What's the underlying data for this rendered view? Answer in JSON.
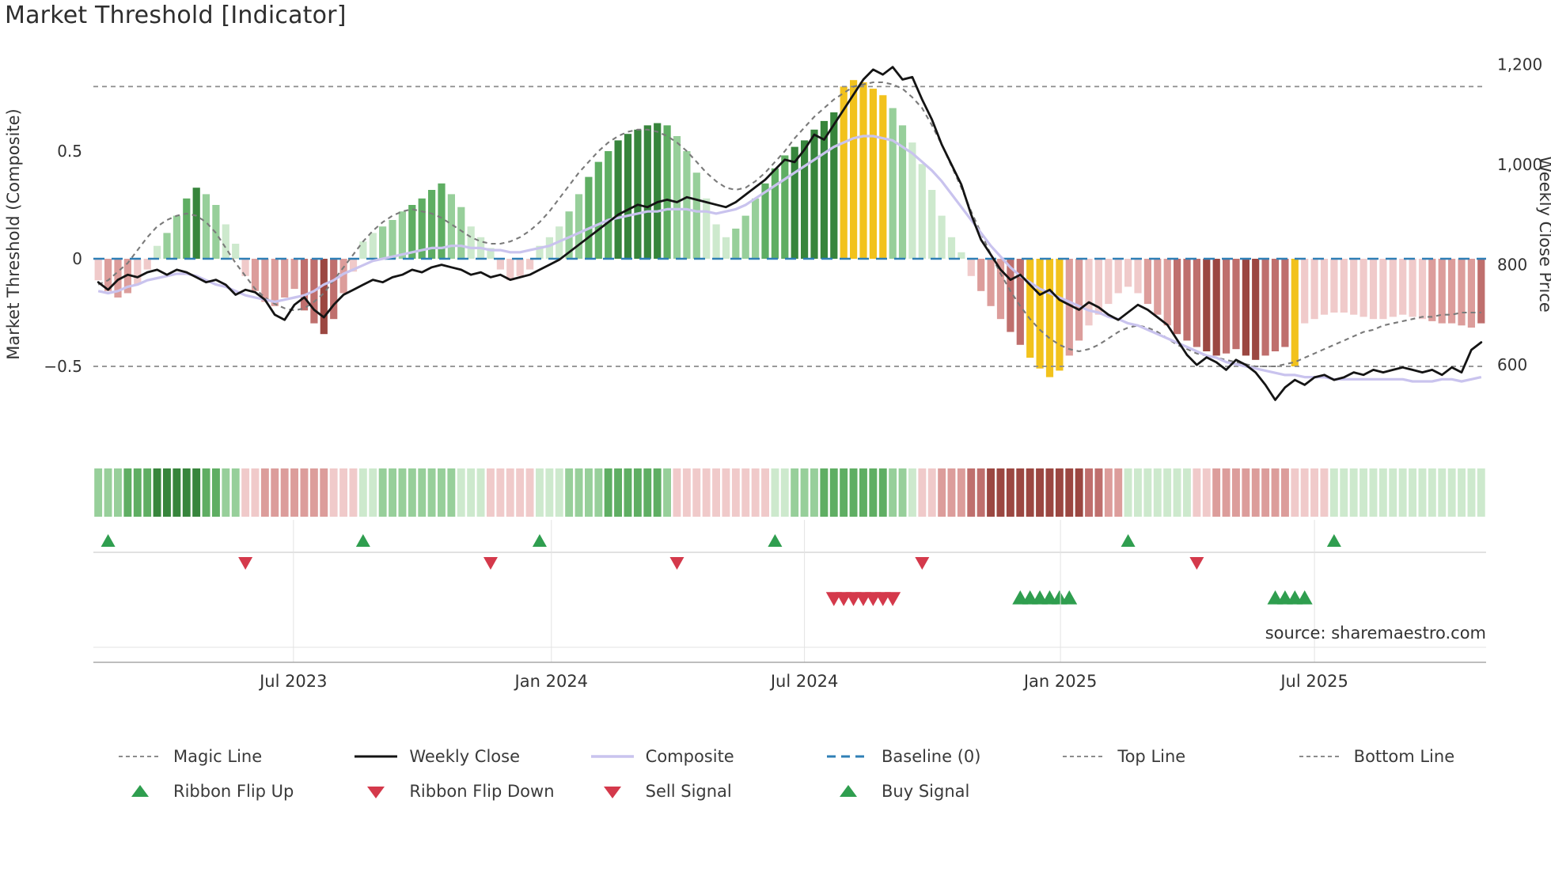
{
  "title": "Market Threshold [Indicator]",
  "source": "source: sharemaestro.com",
  "axes": {
    "left_label": "Market Threshold (Composite)",
    "right_label": "Weekly Close Price",
    "left_ticks": [
      {
        "label": "0.5",
        "value": 0.5
      },
      {
        "label": "0",
        "value": 0
      },
      {
        "label": "−0.5",
        "value": -0.5
      }
    ],
    "right_ticks": [
      {
        "label": "1,200",
        "value": 1200
      },
      {
        "label": "1,000",
        "value": 1000
      },
      {
        "label": "800",
        "value": 800
      },
      {
        "label": "600",
        "value": 600
      }
    ],
    "x_ticks": [
      {
        "label": "Jul 2023",
        "week_position": 19.9
      },
      {
        "label": "Jan 2024",
        "week_position": 46.2
      },
      {
        "label": "Jul 2024",
        "week_position": 72.0
      },
      {
        "label": "Jan 2025",
        "week_position": 98.1
      },
      {
        "label": "Jul 2025",
        "week_position": 124.0
      }
    ]
  },
  "legend": {
    "row1": [
      {
        "label": "Magic Line",
        "swatch": "magic"
      },
      {
        "label": "Weekly Close",
        "swatch": "weekly"
      },
      {
        "label": "Composite",
        "swatch": "composite"
      },
      {
        "label": "Baseline (0)",
        "swatch": "baseline"
      },
      {
        "label": "Top Line",
        "swatch": "top"
      },
      {
        "label": "Bottom Line",
        "swatch": "bottom"
      }
    ],
    "row2": [
      {
        "label": "Ribbon Flip Up",
        "swatch": "flip-up"
      },
      {
        "label": "Ribbon Flip Down",
        "swatch": "flip-down"
      },
      {
        "label": "Sell Signal",
        "swatch": "sell"
      },
      {
        "label": "Buy Signal",
        "swatch": "buy"
      }
    ]
  },
  "colors": {
    "magic_line": "#7a7a7a",
    "weekly_close": "#141414",
    "composite_line": "#c9c3ee",
    "baseline": "#2f7fb6",
    "top_bottom_line": "#8c8c8c",
    "buy_green": "#2f9e4f",
    "sell_red": "#d4394b",
    "bar_palette": {
      "g1": "#cde9cd",
      "g2": "#97cf9a",
      "g3": "#5fae63",
      "g4": "#37853c",
      "r1": "#f0caca",
      "r2": "#dc9d9b",
      "r3": "#bf6f6d",
      "r4": "#9b4741",
      "y": "#f2c21c"
    }
  },
  "chart_data": {
    "type": "bar",
    "subtype": "composite indicator histogram with overlaid lines, ribbon heatmap and signal markers",
    "title": "Market Threshold [Indicator]",
    "xlabel": "",
    "ylabel_left": "Market Threshold (Composite)",
    "ylabel_right": "Weekly Close Price",
    "left_axis_range": [
      -0.9,
      0.85
    ],
    "right_axis_range": [
      560,
      1235
    ],
    "baseline": 0,
    "top_line": 0.8,
    "bottom_line": -0.5,
    "weeks": 142,
    "threshold_bars": {
      "values": [
        -0.1,
        -0.15,
        -0.18,
        -0.16,
        -0.12,
        -0.05,
        0.06,
        0.12,
        0.2,
        0.28,
        0.33,
        0.3,
        0.25,
        0.16,
        0.07,
        -0.08,
        -0.15,
        -0.2,
        -0.22,
        -0.18,
        -0.14,
        -0.24,
        -0.3,
        -0.35,
        -0.28,
        -0.16,
        -0.06,
        0.08,
        0.12,
        0.15,
        0.18,
        0.22,
        0.25,
        0.28,
        0.32,
        0.35,
        0.3,
        0.24,
        0.15,
        0.1,
        0.05,
        -0.05,
        -0.1,
        -0.08,
        -0.05,
        0.06,
        0.1,
        0.15,
        0.22,
        0.3,
        0.38,
        0.45,
        0.5,
        0.55,
        0.58,
        0.6,
        0.62,
        0.63,
        0.62,
        0.57,
        0.5,
        0.4,
        0.28,
        0.16,
        0.1,
        0.14,
        0.2,
        0.28,
        0.35,
        0.42,
        0.48,
        0.52,
        0.55,
        0.6,
        0.64,
        0.68,
        0.8,
        0.83,
        0.82,
        0.79,
        0.76,
        0.7,
        0.62,
        0.54,
        0.44,
        0.32,
        0.2,
        0.1,
        0.03,
        -0.08,
        -0.15,
        -0.22,
        -0.28,
        -0.34,
        -0.4,
        -0.46,
        -0.51,
        -0.55,
        -0.52,
        -0.45,
        -0.38,
        -0.31,
        -0.26,
        -0.21,
        -0.16,
        -0.13,
        -0.16,
        -0.21,
        -0.26,
        -0.31,
        -0.35,
        -0.38,
        -0.41,
        -0.43,
        -0.45,
        -0.44,
        -0.42,
        -0.45,
        -0.47,
        -0.45,
        -0.43,
        -0.41,
        -0.5,
        -0.3,
        -0.28,
        -0.26,
        -0.25,
        -0.25,
        -0.26,
        -0.27,
        -0.28,
        -0.28,
        -0.27,
        -0.26,
        -0.27,
        -0.28,
        -0.29,
        -0.3,
        -0.3,
        -0.31,
        -0.32,
        -0.3
      ],
      "colors": [
        "r1",
        "r2",
        "r2",
        "r2",
        "r1",
        "r1",
        "g1",
        "g2",
        "g2",
        "g3",
        "g4",
        "g2",
        "g2",
        "g1",
        "g1",
        "r1",
        "r2",
        "r2",
        "r2",
        "r2",
        "r2",
        "r3",
        "r3",
        "r4",
        "r3",
        "r2",
        "r1",
        "g1",
        "g1",
        "g2",
        "g2",
        "g2",
        "g3",
        "g3",
        "g3",
        "g3",
        "g2",
        "g2",
        "g1",
        "g1",
        "g1",
        "r1",
        "r1",
        "r1",
        "r1",
        "g1",
        "g1",
        "g1",
        "g2",
        "g2",
        "g3",
        "g3",
        "g3",
        "g4",
        "g4",
        "g4",
        "g4",
        "g4",
        "g3",
        "g2",
        "g2",
        "g2",
        "g1",
        "g1",
        "g1",
        "g2",
        "g2",
        "g2",
        "g3",
        "g3",
        "g3",
        "g4",
        "g4",
        "g4",
        "g4",
        "g4",
        "y",
        "y",
        "y",
        "y",
        "y",
        "g2",
        "g2",
        "g1",
        "g1",
        "g1",
        "g1",
        "g1",
        "g1",
        "r1",
        "r2",
        "r2",
        "r2",
        "r3",
        "r3",
        "y",
        "y",
        "y",
        "y",
        "r2",
        "r2",
        "r1",
        "r1",
        "r1",
        "r1",
        "r1",
        "r1",
        "r2",
        "r2",
        "r2",
        "r3",
        "r3",
        "r3",
        "r4",
        "r4",
        "r3",
        "r3",
        "r4",
        "r4",
        "r3",
        "r3",
        "r3",
        "y",
        "r1",
        "r1",
        "r1",
        "r1",
        "r1",
        "r1",
        "r1",
        "r1",
        "r1",
        "r1",
        "r1",
        "r1",
        "r1",
        "r2",
        "r2",
        "r2",
        "r2",
        "r2",
        "r3"
      ]
    },
    "weekly_close": [
      765,
      750,
      770,
      780,
      775,
      785,
      790,
      780,
      790,
      785,
      775,
      765,
      770,
      760,
      740,
      750,
      745,
      730,
      700,
      690,
      720,
      735,
      710,
      695,
      720,
      740,
      750,
      760,
      770,
      765,
      775,
      780,
      790,
      785,
      795,
      800,
      795,
      790,
      780,
      785,
      775,
      780,
      770,
      775,
      780,
      790,
      800,
      810,
      825,
      840,
      855,
      870,
      885,
      900,
      910,
      920,
      915,
      925,
      930,
      925,
      935,
      930,
      925,
      920,
      915,
      925,
      940,
      955,
      970,
      990,
      1010,
      1005,
      1030,
      1060,
      1050,
      1080,
      1110,
      1140,
      1170,
      1190,
      1180,
      1195,
      1170,
      1175,
      1130,
      1090,
      1040,
      1000,
      960,
      900,
      850,
      820,
      790,
      770,
      780,
      760,
      740,
      750,
      730,
      720,
      710,
      725,
      715,
      700,
      690,
      705,
      720,
      710,
      695,
      680,
      650,
      620,
      600,
      615,
      605,
      590,
      610,
      600,
      585,
      560,
      530,
      555,
      570,
      560,
      575,
      580,
      570,
      575,
      585,
      580,
      590,
      585,
      590,
      595,
      590,
      585,
      590,
      580,
      595,
      585,
      630,
      645
    ],
    "composite": [
      -0.15,
      -0.16,
      -0.15,
      -0.13,
      -0.12,
      -0.1,
      -0.09,
      -0.08,
      -0.07,
      -0.07,
      -0.08,
      -0.1,
      -0.12,
      -0.13,
      -0.15,
      -0.17,
      -0.18,
      -0.19,
      -0.2,
      -0.19,
      -0.18,
      -0.17,
      -0.15,
      -0.12,
      -0.1,
      -0.07,
      -0.05,
      -0.03,
      -0.01,
      0.0,
      0.01,
      0.02,
      0.03,
      0.04,
      0.05,
      0.05,
      0.06,
      0.06,
      0.05,
      0.05,
      0.04,
      0.04,
      0.03,
      0.03,
      0.04,
      0.05,
      0.06,
      0.08,
      0.1,
      0.12,
      0.14,
      0.16,
      0.18,
      0.19,
      0.2,
      0.21,
      0.22,
      0.22,
      0.23,
      0.23,
      0.23,
      0.22,
      0.22,
      0.21,
      0.22,
      0.23,
      0.25,
      0.28,
      0.31,
      0.34,
      0.37,
      0.4,
      0.43,
      0.46,
      0.49,
      0.52,
      0.54,
      0.56,
      0.57,
      0.57,
      0.56,
      0.55,
      0.52,
      0.49,
      0.45,
      0.41,
      0.36,
      0.3,
      0.24,
      0.18,
      0.12,
      0.06,
      0.01,
      -0.04,
      -0.08,
      -0.11,
      -0.14,
      -0.16,
      -0.18,
      -0.2,
      -0.22,
      -0.24,
      -0.25,
      -0.27,
      -0.28,
      -0.3,
      -0.31,
      -0.33,
      -0.35,
      -0.37,
      -0.39,
      -0.41,
      -0.43,
      -0.45,
      -0.46,
      -0.48,
      -0.49,
      -0.5,
      -0.51,
      -0.52,
      -0.53,
      -0.54,
      -0.54,
      -0.55,
      -0.55,
      -0.55,
      -0.56,
      -0.56,
      -0.56,
      -0.56,
      -0.56,
      -0.56,
      -0.56,
      -0.56,
      -0.57,
      -0.57,
      -0.57,
      -0.56,
      -0.56,
      -0.57,
      -0.56,
      -0.55
    ],
    "magic_line": [
      -0.12,
      -0.1,
      -0.06,
      -0.02,
      0.04,
      0.1,
      0.15,
      0.18,
      0.2,
      0.21,
      0.2,
      0.17,
      0.12,
      0.05,
      -0.02,
      -0.08,
      -0.14,
      -0.18,
      -0.21,
      -0.23,
      -0.24,
      -0.23,
      -0.2,
      -0.16,
      -0.1,
      -0.04,
      0.02,
      0.08,
      0.13,
      0.17,
      0.2,
      0.22,
      0.23,
      0.22,
      0.21,
      0.19,
      0.16,
      0.13,
      0.1,
      0.08,
      0.07,
      0.07,
      0.08,
      0.1,
      0.13,
      0.17,
      0.22,
      0.28,
      0.34,
      0.4,
      0.45,
      0.5,
      0.54,
      0.57,
      0.59,
      0.6,
      0.6,
      0.59,
      0.57,
      0.54,
      0.5,
      0.45,
      0.4,
      0.36,
      0.33,
      0.32,
      0.33,
      0.36,
      0.4,
      0.45,
      0.5,
      0.56,
      0.61,
      0.66,
      0.7,
      0.74,
      0.77,
      0.8,
      0.81,
      0.82,
      0.82,
      0.81,
      0.79,
      0.75,
      0.7,
      0.62,
      0.53,
      0.43,
      0.33,
      0.22,
      0.12,
      0.02,
      -0.07,
      -0.15,
      -0.22,
      -0.28,
      -0.33,
      -0.37,
      -0.4,
      -0.42,
      -0.43,
      -0.42,
      -0.4,
      -0.37,
      -0.34,
      -0.32,
      -0.31,
      -0.32,
      -0.34,
      -0.37,
      -0.4,
      -0.42,
      -0.44,
      -0.45,
      -0.46,
      -0.47,
      -0.48,
      -0.49,
      -0.5,
      -0.5,
      -0.5,
      -0.49,
      -0.48,
      -0.46,
      -0.44,
      -0.42,
      -0.4,
      -0.38,
      -0.36,
      -0.34,
      -0.33,
      -0.31,
      -0.3,
      -0.29,
      -0.28,
      -0.27,
      -0.27,
      -0.26,
      -0.26,
      -0.25,
      -0.25,
      -0.25
    ],
    "ribbon": [
      "g2",
      "g2",
      "g2",
      "g3",
      "g3",
      "g3",
      "g4",
      "g4",
      "g4",
      "g4",
      "g4",
      "g3",
      "g3",
      "g2",
      "g2",
      "r1",
      "r1",
      "r2",
      "r2",
      "r2",
      "r2",
      "r2",
      "r2",
      "r2",
      "r1",
      "r1",
      "r1",
      "g1",
      "g1",
      "g2",
      "g2",
      "g2",
      "g2",
      "g2",
      "g2",
      "g2",
      "g2",
      "g1",
      "g1",
      "g1",
      "r1",
      "r1",
      "r1",
      "r1",
      "r1",
      "g1",
      "g1",
      "g1",
      "g2",
      "g2",
      "g2",
      "g2",
      "g3",
      "g3",
      "g3",
      "g3",
      "g3",
      "g3",
      "g2",
      "r1",
      "r1",
      "r1",
      "r1",
      "r1",
      "r1",
      "r1",
      "r1",
      "r1",
      "r1",
      "g1",
      "g1",
      "g2",
      "g2",
      "g2",
      "g3",
      "g3",
      "g3",
      "g3",
      "g3",
      "g3",
      "g3",
      "g2",
      "g2",
      "g1",
      "r1",
      "r1",
      "r2",
      "r2",
      "r2",
      "r3",
      "r3",
      "r4",
      "r4",
      "r4",
      "r4",
      "r4",
      "r4",
      "r4",
      "r4",
      "r4",
      "r4",
      "r3",
      "r3",
      "r2",
      "r2",
      "g1",
      "g1",
      "g1",
      "g1",
      "g1",
      "g1",
      "g1",
      "r1",
      "r1",
      "r2",
      "r2",
      "r2",
      "r2",
      "r2",
      "r2",
      "r2",
      "r2",
      "r1",
      "r1",
      "r1",
      "r1",
      "g1",
      "g1",
      "g1",
      "g1",
      "g1",
      "g1",
      "g1",
      "g1",
      "g1",
      "g1",
      "g1",
      "g1",
      "g1",
      "g1",
      "g1",
      "g1"
    ],
    "signals": {
      "ribbon_flip_up": [
        1,
        27,
        45,
        69,
        105,
        126
      ],
      "ribbon_flip_down": [
        15,
        40,
        59,
        84,
        112
      ],
      "sell": [
        75,
        76,
        77,
        78,
        79,
        80,
        81
      ],
      "buy": [
        94,
        95,
        96,
        97,
        98,
        99,
        120,
        121,
        122,
        123
      ]
    }
  }
}
